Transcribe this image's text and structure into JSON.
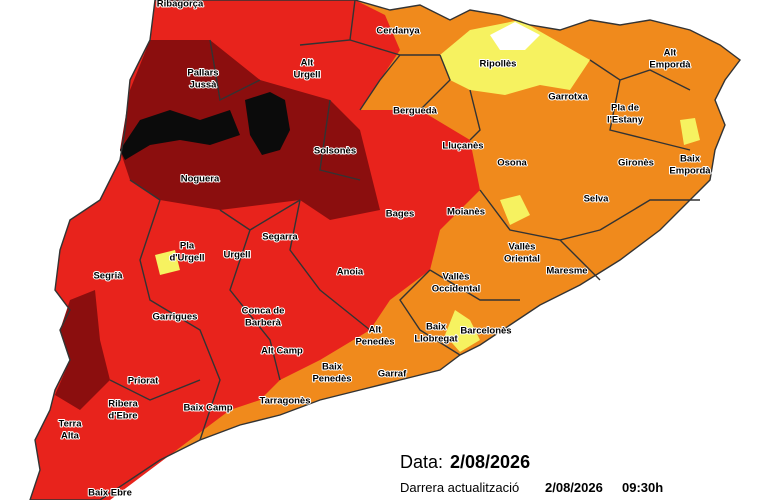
{
  "labels": [
    [
      "Ribagorça"
    ],
    [
      "Cerdanya"
    ],
    [
      "Alt",
      "Urgell"
    ],
    [
      "Pallars",
      "Jussà"
    ],
    [
      "Ripollès"
    ],
    [
      "Alt",
      "Empordà"
    ],
    [
      "Garrotxa"
    ],
    [
      "Berguedà"
    ],
    [
      "Pla de",
      "l'Estany"
    ],
    [
      "Solsonès"
    ],
    [
      "Lluçanès"
    ],
    [
      "Osona"
    ],
    [
      "Gironès"
    ],
    [
      "Baix",
      "Empordà"
    ],
    [
      "Noguera"
    ],
    [
      "Selva"
    ],
    [
      "Bages"
    ],
    [
      "Moianès"
    ],
    [
      "Segarra"
    ],
    [
      "Pla",
      "d'Urgell"
    ],
    [
      "Urgell"
    ],
    [
      "Vallès",
      "Oriental"
    ],
    [
      "Anoia"
    ],
    [
      "Maresme"
    ],
    [
      "Segrià"
    ],
    [
      "Vallès",
      "Occidental"
    ],
    [
      "Garrigues"
    ],
    [
      "Conca de",
      "Barberà"
    ],
    [
      "Barcelonès"
    ],
    [
      "Alt",
      "Penedès"
    ],
    [
      "Baix",
      "Llobregat"
    ],
    [
      "Alt Camp"
    ],
    [
      "Baix",
      "Penedès"
    ],
    [
      "Garraf"
    ],
    [
      "Priorat"
    ],
    [
      "Ribera",
      "d'Ebre"
    ],
    [
      "Baix Camp"
    ],
    [
      "Tarragonès"
    ],
    [
      "Terra",
      "Alta"
    ],
    [
      "Baix Ebre"
    ]
  ],
  "footer": {
    "date_label": "Data:",
    "date": "2/08/2026",
    "update_label": "Darrera actualització",
    "update_date": "2/08/2026",
    "update_time": "09:30h"
  }
}
